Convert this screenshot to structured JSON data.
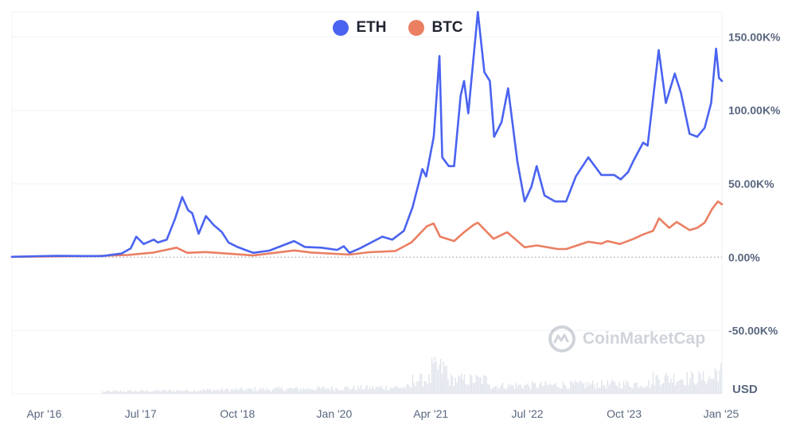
{
  "legend": {
    "items": [
      {
        "label": "ETH",
        "color": "#4a63f0"
      },
      {
        "label": "BTC",
        "color": "#ea7f62"
      }
    ]
  },
  "watermark": {
    "text": "CoinMarketCap",
    "icon": "coinmarketcap-logo-icon"
  },
  "chart_data": {
    "type": "line",
    "x_axis": {
      "range": [
        "2015-11-01",
        "2025-01-05"
      ],
      "ticks": [
        {
          "date": "2016-04-01",
          "label": "Apr '16"
        },
        {
          "date": "2017-07-01",
          "label": "Jul '17"
        },
        {
          "date": "2018-10-01",
          "label": "Oct '18"
        },
        {
          "date": "2020-01-01",
          "label": "Jan '20"
        },
        {
          "date": "2021-04-01",
          "label": "Apr '21"
        },
        {
          "date": "2022-07-01",
          "label": "Jul '22"
        },
        {
          "date": "2023-10-01",
          "label": "Oct '23"
        },
        {
          "date": "2025-01-01",
          "label": "Jan '25"
        }
      ]
    },
    "y_axis": {
      "position": "right",
      "unit": "USD",
      "range": [
        -93000,
        167000
      ],
      "ticks": [
        {
          "value": -50000,
          "label": "-50.00K%"
        },
        {
          "value": 0,
          "label": "0.00%"
        },
        {
          "value": 50000,
          "label": "50.00K%"
        },
        {
          "value": 100000,
          "label": "100.00K%"
        },
        {
          "value": 150000,
          "label": "150.00K%"
        }
      ]
    },
    "grid": true,
    "legend_position": "top-center",
    "series": [
      {
        "name": "ETH",
        "color": "#4a63f0",
        "points": [
          [
            "2015-11-01",
            300
          ],
          [
            "2016-03-01",
            700
          ],
          [
            "2016-06-01",
            900
          ],
          [
            "2016-10-01",
            800
          ],
          [
            "2017-01-01",
            800
          ],
          [
            "2017-04-01",
            2500
          ],
          [
            "2017-05-15",
            6000
          ],
          [
            "2017-06-10",
            14000
          ],
          [
            "2017-07-15",
            9000
          ],
          [
            "2017-09-01",
            12000
          ],
          [
            "2017-09-20",
            10000
          ],
          [
            "2017-11-01",
            12000
          ],
          [
            "2017-12-10",
            26000
          ],
          [
            "2018-01-13",
            41000
          ],
          [
            "2018-02-10",
            32000
          ],
          [
            "2018-03-01",
            30000
          ],
          [
            "2018-04-01",
            16000
          ],
          [
            "2018-05-05",
            28000
          ],
          [
            "2018-06-10",
            22000
          ],
          [
            "2018-07-20",
            17000
          ],
          [
            "2018-08-20",
            10000
          ],
          [
            "2018-10-01",
            7000
          ],
          [
            "2018-11-15",
            4500
          ],
          [
            "2018-12-15",
            3000
          ],
          [
            "2019-03-01",
            4500
          ],
          [
            "2019-06-25",
            11000
          ],
          [
            "2019-08-15",
            7000
          ],
          [
            "2019-11-01",
            6500
          ],
          [
            "2020-01-15",
            5000
          ],
          [
            "2020-02-15",
            7500
          ],
          [
            "2020-03-13",
            3000
          ],
          [
            "2020-05-01",
            6000
          ],
          [
            "2020-08-15",
            14000
          ],
          [
            "2020-10-01",
            12000
          ],
          [
            "2020-11-25",
            18000
          ],
          [
            "2021-01-05",
            34000
          ],
          [
            "2021-02-20",
            60000
          ],
          [
            "2021-03-10",
            55000
          ],
          [
            "2021-04-15",
            82000
          ],
          [
            "2021-05-12",
            137000
          ],
          [
            "2021-05-25",
            68000
          ],
          [
            "2021-06-25",
            62000
          ],
          [
            "2021-07-20",
            62000
          ],
          [
            "2021-08-20",
            110000
          ],
          [
            "2021-09-05",
            120000
          ],
          [
            "2021-09-25",
            98000
          ],
          [
            "2021-11-09",
            167000
          ],
          [
            "2021-12-10",
            126000
          ],
          [
            "2022-01-05",
            120000
          ],
          [
            "2022-01-25",
            82000
          ],
          [
            "2022-03-01",
            92000
          ],
          [
            "2022-04-01",
            115000
          ],
          [
            "2022-05-15",
            65000
          ],
          [
            "2022-06-18",
            38000
          ],
          [
            "2022-07-20",
            48000
          ],
          [
            "2022-08-14",
            62000
          ],
          [
            "2022-09-20",
            42000
          ],
          [
            "2022-11-09",
            38000
          ],
          [
            "2022-12-31",
            38000
          ],
          [
            "2023-02-15",
            55000
          ],
          [
            "2023-04-15",
            68000
          ],
          [
            "2023-06-15",
            56000
          ],
          [
            "2023-08-15",
            56000
          ],
          [
            "2023-09-15",
            53000
          ],
          [
            "2023-10-20",
            58000
          ],
          [
            "2023-11-15",
            66000
          ],
          [
            "2023-12-30",
            78000
          ],
          [
            "2024-01-20",
            76000
          ],
          [
            "2024-03-12",
            141000
          ],
          [
            "2024-04-15",
            105000
          ],
          [
            "2024-05-27",
            125000
          ],
          [
            "2024-06-25",
            112000
          ],
          [
            "2024-08-05",
            84000
          ],
          [
            "2024-09-10",
            82000
          ],
          [
            "2024-10-15",
            88000
          ],
          [
            "2024-11-15",
            105000
          ],
          [
            "2024-12-08",
            142000
          ],
          [
            "2024-12-22",
            122000
          ],
          [
            "2025-01-05",
            120000
          ]
        ]
      },
      {
        "name": "BTC",
        "color": "#ea7f62",
        "points": [
          [
            "2015-11-01",
            300
          ],
          [
            "2016-06-01",
            600
          ],
          [
            "2016-12-01",
            800
          ],
          [
            "2017-05-01",
            1500
          ],
          [
            "2017-09-01",
            3200
          ],
          [
            "2017-12-17",
            6500
          ],
          [
            "2018-02-06",
            3000
          ],
          [
            "2018-05-05",
            3500
          ],
          [
            "2018-12-15",
            1200
          ],
          [
            "2019-06-26",
            4600
          ],
          [
            "2019-09-15",
            3200
          ],
          [
            "2020-03-13",
            1800
          ],
          [
            "2020-06-15",
            3400
          ],
          [
            "2020-10-15",
            4200
          ],
          [
            "2020-12-30",
            10000
          ],
          [
            "2021-03-13",
            21000
          ],
          [
            "2021-04-14",
            23000
          ],
          [
            "2021-05-15",
            14000
          ],
          [
            "2021-07-20",
            11000
          ],
          [
            "2021-09-05",
            17000
          ],
          [
            "2021-10-20",
            22000
          ],
          [
            "2021-11-09",
            23500
          ],
          [
            "2022-01-22",
            12500
          ],
          [
            "2022-03-28",
            17000
          ],
          [
            "2022-06-18",
            6800
          ],
          [
            "2022-08-15",
            8000
          ],
          [
            "2022-11-21",
            5600
          ],
          [
            "2023-01-01",
            5600
          ],
          [
            "2023-04-14",
            10500
          ],
          [
            "2023-06-15",
            9200
          ],
          [
            "2023-07-14",
            11000
          ],
          [
            "2023-09-11",
            9000
          ],
          [
            "2023-11-15",
            12500
          ],
          [
            "2023-12-30",
            15500
          ],
          [
            "2024-02-15",
            18000
          ],
          [
            "2024-03-14",
            26500
          ],
          [
            "2024-05-01",
            20000
          ],
          [
            "2024-06-05",
            24000
          ],
          [
            "2024-08-05",
            18500
          ],
          [
            "2024-09-10",
            20000
          ],
          [
            "2024-10-15",
            23500
          ],
          [
            "2024-11-20",
            33000
          ],
          [
            "2024-12-17",
            38000
          ],
          [
            "2025-01-05",
            36000
          ]
        ]
      }
    ]
  },
  "volume_bars": {
    "description_range": [
      "2017-01-01",
      "2025-01-05"
    ],
    "max_value": 1.0
  }
}
